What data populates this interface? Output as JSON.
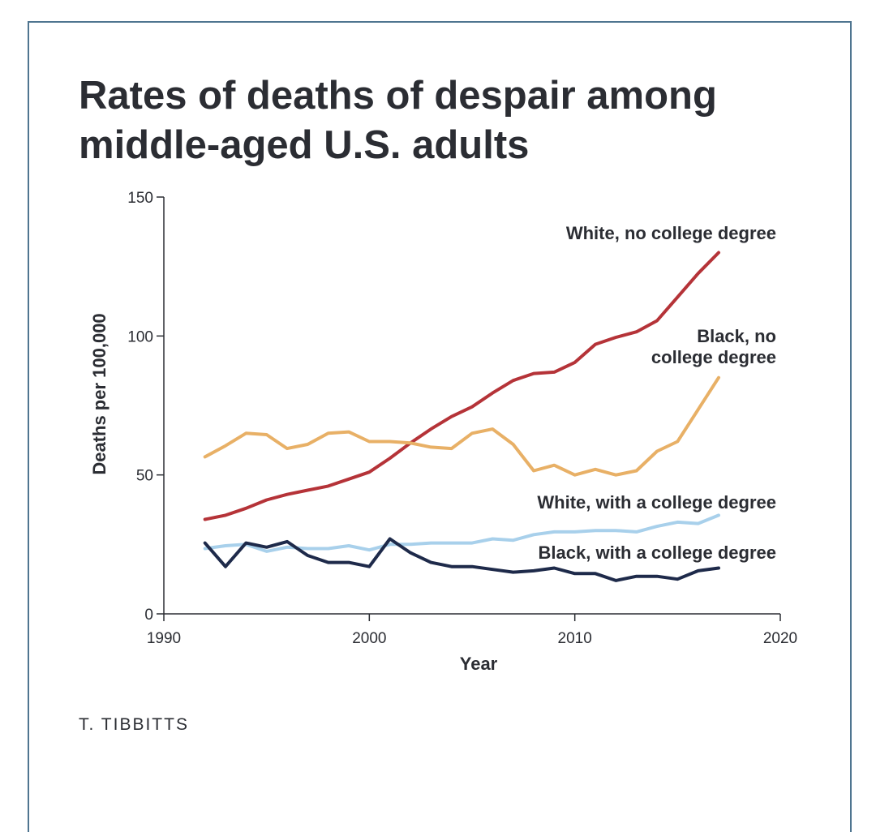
{
  "title": "Rates of deaths of despair among\nmiddle-aged U.S. adults",
  "credit": "T. TIBBITTS",
  "colors": {
    "frame": "#4f7590",
    "text": "#2b2d33",
    "axis": "#2b2d33"
  },
  "chart_data": {
    "type": "line",
    "xlabel": "Year",
    "ylabel": "Deaths per 100,000",
    "xlim": [
      1990,
      2020
    ],
    "ylim": [
      0,
      150
    ],
    "xticks": [
      1990,
      2000,
      2010,
      2020
    ],
    "yticks": [
      0,
      50,
      100,
      150
    ],
    "grid": false,
    "legend": "labels beside series",
    "x": [
      1992,
      1993,
      1994,
      1995,
      1996,
      1997,
      1998,
      1999,
      2000,
      2001,
      2002,
      2003,
      2004,
      2005,
      2006,
      2007,
      2008,
      2009,
      2010,
      2011,
      2012,
      2013,
      2014,
      2015,
      2016,
      2017
    ],
    "series": [
      {
        "name": "White, no college degree",
        "color": "#b53338",
        "values": [
          34,
          35.5,
          38,
          41,
          43,
          44.5,
          46,
          48.5,
          51,
          56,
          61.5,
          66.5,
          71,
          74.5,
          79.5,
          84,
          86.5,
          87,
          90.5,
          97,
          99.5,
          101.5,
          105.5,
          114,
          122.5,
          130
        ]
      },
      {
        "name": "Black, no college degree",
        "color": "#e8b066",
        "values": [
          56.5,
          60.5,
          65,
          64.5,
          59.5,
          61,
          65,
          65.5,
          62,
          62,
          61.5,
          60,
          59.5,
          65,
          66.5,
          61,
          51.5,
          53.5,
          50,
          52,
          50,
          51.5,
          58.5,
          62,
          73.5,
          85
        ]
      },
      {
        "name": "White, with a college degree",
        "color": "#a8d0eb",
        "values": [
          23.5,
          24.5,
          25,
          22.5,
          24,
          23.5,
          23.5,
          24.5,
          23,
          25,
          25,
          25.5,
          25.5,
          25.5,
          27,
          26.5,
          28.5,
          29.5,
          29.5,
          30,
          30,
          29.5,
          31.5,
          33,
          32.5,
          35.5
        ]
      },
      {
        "name": "Black, with a college degree",
        "color": "#1e2a4a",
        "values": [
          25.5,
          17,
          25.5,
          24,
          26,
          21,
          18.5,
          18.5,
          17,
          27,
          22,
          18.5,
          17,
          17,
          16,
          15,
          15.5,
          16.5,
          14.5,
          14.5,
          12,
          13.5,
          13.5,
          12.5,
          15.5,
          16.5
        ]
      }
    ]
  }
}
